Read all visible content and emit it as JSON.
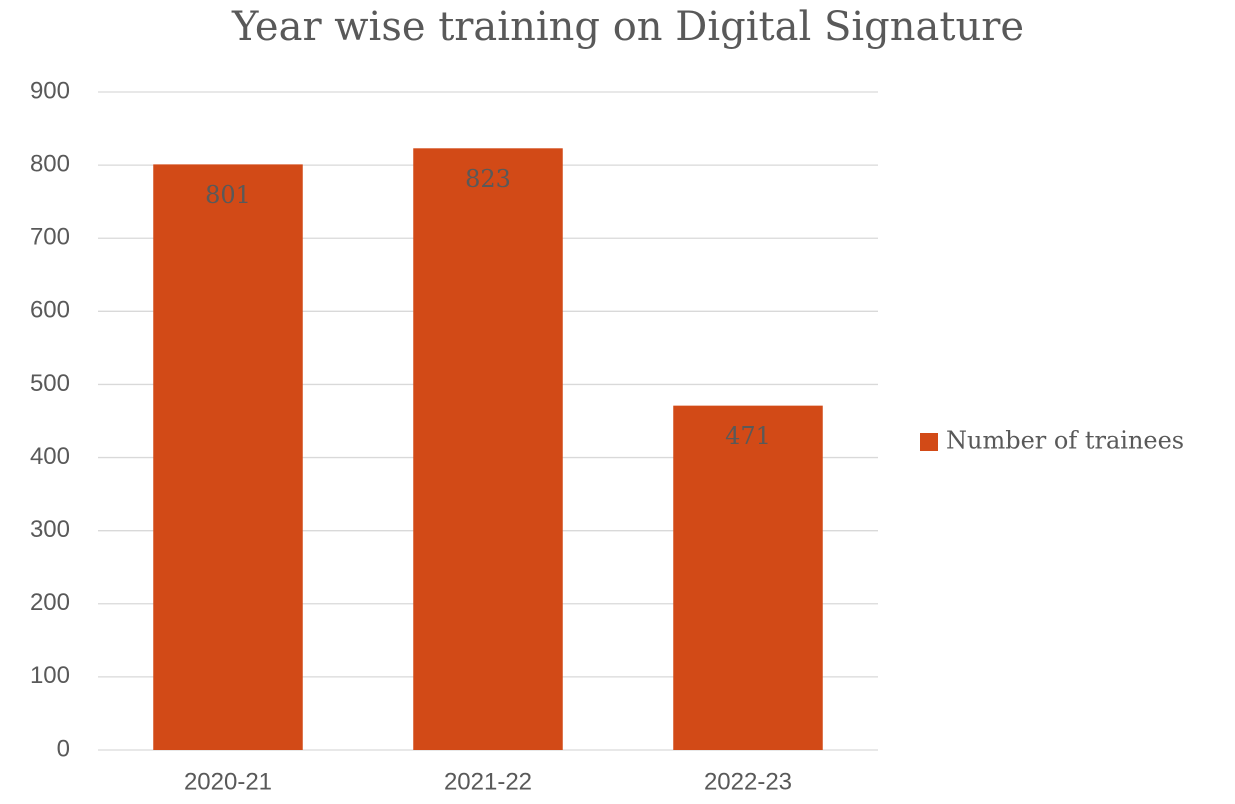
{
  "chart_data": {
    "type": "bar",
    "title": "Year wise training on Digital Signature",
    "categories": [
      "2020-21",
      "2021-22",
      "2022-23"
    ],
    "series": [
      {
        "name": "Number of trainees",
        "color": "#d24a17",
        "values": [
          801,
          823,
          471
        ]
      }
    ],
    "ylim": [
      0,
      900
    ],
    "yticks": [
      0,
      100,
      200,
      300,
      400,
      500,
      600,
      700,
      800,
      900
    ],
    "grid": true,
    "legend": "right",
    "data_labels": true
  }
}
